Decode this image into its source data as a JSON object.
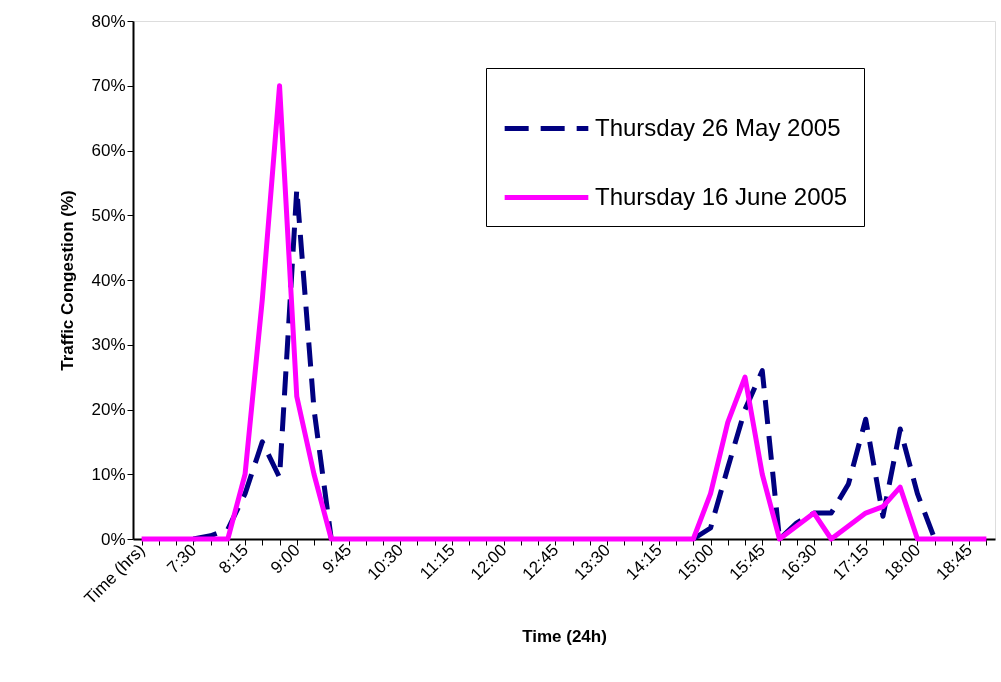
{
  "chart_data": {
    "type": "line",
    "xlabel": "Time (24h)",
    "ylabel": "Traffic Congestion (%)",
    "categories": [
      "Time (hrs)",
      null,
      null,
      "7:30",
      null,
      null,
      "8:15",
      null,
      null,
      "9:00",
      null,
      null,
      "9:45",
      null,
      null,
      "10:30",
      null,
      null,
      "11:15",
      null,
      null,
      "12:00",
      null,
      null,
      "12:45",
      null,
      null,
      "13:30",
      null,
      null,
      "14:15",
      null,
      null,
      "15:00",
      null,
      null,
      "15:45",
      null,
      null,
      "16:30",
      null,
      null,
      "17:15",
      null,
      null,
      "18:00",
      null,
      null,
      "18:45",
      null
    ],
    "series": [
      {
        "name": "Thursday 26 May 2005",
        "color": "#000080",
        "line_style": "dashed",
        "values": [
          null,
          null,
          null,
          0,
          0.5,
          1.5,
          7,
          15,
          9.5,
          54,
          20,
          0,
          null,
          null,
          null,
          null,
          null,
          null,
          null,
          null,
          null,
          null,
          null,
          null,
          null,
          null,
          null,
          null,
          null,
          null,
          null,
          null,
          0,
          1.7,
          11,
          20,
          26,
          0,
          2.5,
          4,
          4,
          8.5,
          18.5,
          3.5,
          17,
          7,
          0,
          null,
          null,
          null
        ]
      },
      {
        "name": "Thursday 16 June 2005",
        "color": "#ff00ff",
        "line_style": "solid",
        "values": [
          0,
          0,
          0,
          0,
          0,
          0,
          10,
          37,
          70,
          22,
          10,
          0,
          0,
          0,
          0,
          0,
          0,
          0,
          0,
          0,
          0,
          0,
          0,
          0,
          0,
          0,
          0,
          0,
          0,
          0,
          0,
          0,
          0,
          7,
          18,
          25,
          10,
          0,
          2,
          4,
          0,
          2,
          4,
          5,
          8,
          0,
          0,
          0,
          0,
          0
        ]
      }
    ],
    "ylim": [
      0,
      80
    ],
    "yticks": [
      {
        "value": 0,
        "label": "0%"
      },
      {
        "value": 10,
        "label": "10%"
      },
      {
        "value": 20,
        "label": "20%"
      },
      {
        "value": 30,
        "label": "30%"
      },
      {
        "value": 40,
        "label": "40%"
      },
      {
        "value": 50,
        "label": "50%"
      },
      {
        "value": 60,
        "label": "60%"
      },
      {
        "value": 70,
        "label": "70%"
      },
      {
        "value": 80,
        "label": "80%"
      }
    ],
    "legend": "top right",
    "grid": false,
    "marker": "none"
  }
}
